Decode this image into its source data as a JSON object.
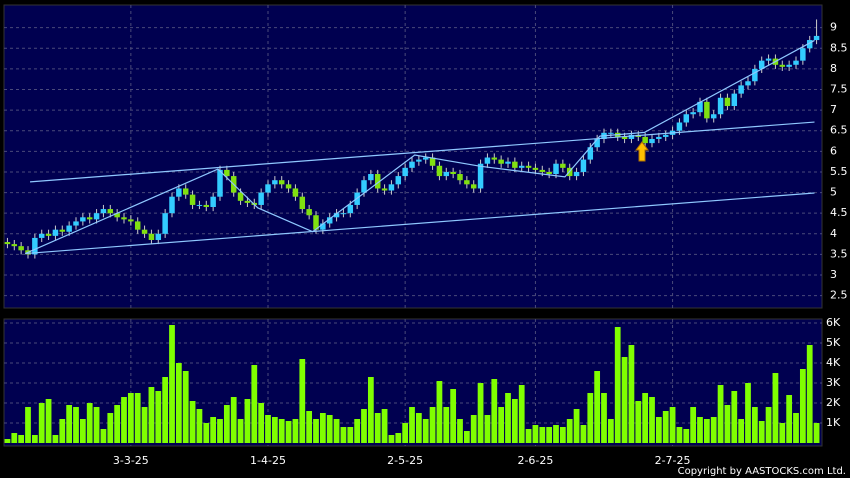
{
  "chart_data": {
    "type": "candlestick",
    "categories": [
      null,
      null,
      null,
      null,
      null,
      null,
      null,
      null,
      null,
      null,
      null,
      null,
      null,
      null,
      null,
      null,
      null,
      null,
      "3-3-25",
      null,
      null,
      null,
      null,
      null,
      null,
      null,
      null,
      null,
      null,
      null,
      null,
      null,
      null,
      null,
      null,
      null,
      null,
      null,
      "1-4-25",
      null,
      null,
      null,
      null,
      null,
      null,
      null,
      null,
      null,
      null,
      null,
      null,
      null,
      null,
      null,
      null,
      null,
      null,
      null,
      "2-5-25",
      null,
      null,
      null,
      null,
      null,
      null,
      null,
      null,
      null,
      null,
      null,
      null,
      null,
      null,
      null,
      null,
      null,
      null,
      "2-6-25",
      null,
      null,
      null,
      null,
      null,
      null,
      null,
      null,
      null,
      null,
      null,
      null,
      null,
      null,
      null,
      null,
      null,
      null,
      null,
      "2-7-25",
      null,
      null,
      null,
      null,
      null,
      null,
      null,
      null,
      null,
      null,
      null,
      null,
      null,
      null,
      null,
      null,
      null,
      null,
      null,
      null,
      null
    ],
    "open": [
      3.8,
      3.75,
      3.7,
      3.6,
      3.5,
      3.9,
      4.0,
      3.95,
      4.1,
      4.05,
      4.2,
      4.3,
      4.4,
      4.35,
      4.5,
      4.6,
      4.5,
      4.4,
      4.35,
      4.3,
      4.1,
      4.0,
      3.85,
      4.0,
      4.5,
      4.9,
      5.1,
      4.95,
      4.7,
      4.7,
      4.65,
      4.9,
      5.55,
      5.4,
      5.0,
      4.8,
      4.75,
      4.7,
      5.0,
      5.2,
      5.3,
      5.2,
      5.1,
      4.9,
      4.6,
      4.45,
      4.1,
      4.25,
      4.4,
      4.5,
      4.5,
      4.7,
      5.0,
      5.3,
      5.45,
      5.1,
      5.05,
      5.2,
      5.4,
      5.6,
      5.75,
      5.8,
      5.85,
      5.65,
      5.4,
      5.5,
      5.45,
      5.3,
      5.2,
      5.1,
      5.7,
      5.85,
      5.8,
      5.7,
      5.75,
      5.6,
      5.65,
      5.6,
      5.55,
      5.5,
      5.45,
      5.7,
      5.6,
      5.4,
      5.5,
      5.8,
      6.1,
      6.3,
      6.45,
      6.45,
      6.35,
      6.3,
      6.4,
      6.35,
      6.2,
      6.3,
      6.35,
      6.4,
      6.5,
      6.7,
      6.9,
      6.95,
      7.2,
      6.8,
      6.9,
      7.3,
      7.1,
      7.4,
      7.6,
      7.7,
      8.0,
      8.2,
      8.25,
      8.1,
      8.05,
      8.1,
      8.2,
      8.5,
      8.7
    ],
    "high": [
      3.9,
      3.85,
      3.8,
      3.7,
      4.0,
      4.1,
      4.1,
      4.2,
      4.2,
      4.3,
      4.4,
      4.5,
      4.5,
      4.6,
      4.7,
      4.7,
      4.6,
      4.5,
      4.45,
      4.4,
      4.2,
      4.1,
      4.1,
      4.6,
      5.0,
      5.2,
      5.2,
      5.05,
      4.8,
      4.8,
      5.0,
      5.65,
      5.65,
      5.5,
      5.1,
      4.9,
      4.85,
      5.1,
      5.3,
      5.4,
      5.4,
      5.3,
      5.2,
      5.0,
      4.7,
      4.55,
      4.35,
      4.5,
      4.6,
      4.6,
      4.8,
      5.1,
      5.4,
      5.55,
      5.55,
      5.2,
      5.3,
      5.5,
      5.7,
      5.85,
      5.9,
      5.95,
      5.95,
      5.75,
      5.6,
      5.6,
      5.55,
      5.4,
      5.3,
      5.8,
      5.95,
      5.95,
      5.9,
      5.85,
      5.85,
      5.75,
      5.75,
      5.7,
      5.65,
      5.6,
      5.8,
      5.8,
      5.7,
      5.6,
      5.9,
      6.2,
      6.4,
      6.55,
      6.55,
      6.55,
      6.45,
      6.5,
      6.5,
      6.45,
      6.4,
      6.45,
      6.5,
      6.6,
      6.8,
      7.0,
      7.05,
      7.3,
      7.3,
      7.0,
      7.4,
      7.4,
      7.5,
      7.7,
      7.8,
      8.1,
      8.3,
      8.35,
      8.35,
      8.2,
      8.2,
      8.3,
      8.6,
      8.8,
      9.2
    ],
    "low": [
      3.65,
      3.6,
      3.5,
      3.4,
      3.4,
      3.8,
      3.85,
      3.85,
      3.95,
      3.95,
      4.1,
      4.2,
      4.25,
      4.25,
      4.4,
      4.4,
      4.3,
      4.25,
      4.2,
      4.0,
      3.9,
      3.75,
      3.75,
      3.9,
      4.4,
      4.8,
      4.85,
      4.6,
      4.6,
      4.55,
      4.55,
      4.8,
      5.3,
      4.9,
      4.7,
      4.65,
      4.6,
      4.6,
      4.9,
      5.1,
      5.1,
      5.0,
      4.8,
      4.5,
      4.35,
      4.0,
      4.0,
      4.15,
      4.3,
      4.4,
      4.4,
      4.6,
      4.9,
      5.2,
      5.0,
      4.95,
      4.95,
      5.1,
      5.3,
      5.5,
      5.65,
      5.7,
      5.55,
      5.3,
      5.3,
      5.35,
      5.2,
      5.1,
      5.0,
      5.0,
      5.6,
      5.7,
      5.6,
      5.6,
      5.5,
      5.5,
      5.5,
      5.45,
      5.4,
      5.35,
      5.35,
      5.5,
      5.3,
      5.3,
      5.4,
      5.7,
      6.0,
      6.2,
      6.35,
      6.25,
      6.2,
      6.2,
      6.25,
      6.1,
      6.1,
      6.2,
      6.25,
      6.3,
      6.4,
      6.6,
      6.8,
      6.85,
      6.7,
      6.7,
      6.8,
      7.0,
      7.0,
      7.3,
      7.5,
      7.6,
      7.9,
      8.1,
      8.0,
      7.95,
      7.95,
      8.0,
      8.1,
      8.4,
      8.6
    ],
    "close": [
      3.75,
      3.7,
      3.6,
      3.5,
      3.9,
      4.0,
      3.95,
      4.1,
      4.05,
      4.2,
      4.3,
      4.4,
      4.35,
      4.5,
      4.6,
      4.5,
      4.4,
      4.35,
      4.3,
      4.1,
      4.0,
      3.85,
      4.0,
      4.5,
      4.9,
      5.1,
      4.95,
      4.7,
      4.7,
      4.65,
      4.9,
      5.55,
      5.4,
      5.0,
      4.8,
      4.75,
      4.7,
      5.0,
      5.2,
      5.3,
      5.2,
      5.1,
      4.9,
      4.6,
      4.45,
      4.1,
      4.25,
      4.4,
      4.5,
      4.5,
      4.7,
      5.0,
      5.3,
      5.45,
      5.1,
      5.05,
      5.2,
      5.4,
      5.6,
      5.75,
      5.8,
      5.85,
      5.65,
      5.4,
      5.5,
      5.45,
      5.3,
      5.2,
      5.1,
      5.7,
      5.85,
      5.8,
      5.7,
      5.75,
      5.6,
      5.65,
      5.6,
      5.55,
      5.5,
      5.45,
      5.7,
      5.6,
      5.4,
      5.5,
      5.8,
      6.1,
      6.3,
      6.45,
      6.45,
      6.35,
      6.3,
      6.4,
      6.35,
      6.2,
      6.3,
      6.35,
      6.4,
      6.5,
      6.7,
      6.9,
      6.95,
      7.2,
      6.8,
      6.9,
      7.3,
      7.1,
      7.4,
      7.6,
      7.7,
      8.0,
      8.2,
      8.25,
      8.1,
      8.05,
      8.1,
      8.2,
      8.5,
      8.7,
      8.8
    ],
    "volume": [
      200,
      500,
      400,
      1800,
      400,
      2000,
      2200,
      400,
      1200,
      1900,
      1800,
      1200,
      2000,
      1800,
      700,
      1500,
      1900,
      2300,
      2500,
      2500,
      1800,
      2800,
      2600,
      3300,
      5900,
      4000,
      3600,
      2100,
      1700,
      1000,
      1300,
      1200,
      1900,
      2300,
      1200,
      2200,
      3900,
      2000,
      1400,
      1300,
      1200,
      1100,
      1200,
      4200,
      1600,
      1200,
      1500,
      1400,
      1200,
      800,
      800,
      1200,
      1700,
      3300,
      1500,
      1700,
      400,
      500,
      1000,
      1800,
      1500,
      1200,
      1800,
      3100,
      1800,
      2700,
      1200,
      600,
      1400,
      3000,
      1400,
      3200,
      1800,
      2500,
      2200,
      2900,
      700,
      900,
      800,
      800,
      900,
      800,
      1200,
      1700,
      900,
      2500,
      3600,
      2500,
      1200,
      5800,
      4300,
      4900,
      2100,
      2500,
      2300,
      1300,
      1600,
      1800,
      800,
      700,
      1800,
      1300,
      1200,
      1300,
      2900,
      1900,
      2600,
      1200,
      3000,
      1800,
      1100,
      1800,
      3500,
      1000,
      2400,
      1500,
      3700,
      4900,
      1000
    ],
    "up_color": "#33ccff",
    "down_color": "#80e010",
    "volume_color": "#80ff00",
    "line_color": "#8fc8ff",
    "ylim": [
      2.2,
      9.55
    ],
    "yticks": [
      2.5,
      3,
      3.5,
      4,
      4.5,
      5,
      5.5,
      6,
      6.5,
      7,
      7.5,
      8,
      8.5,
      9
    ],
    "volume_ylim": [
      -150,
      6200
    ],
    "volume_ticks": [
      {
        "value": 1000,
        "label": "1K"
      },
      {
        "value": 2000,
        "label": "2K"
      },
      {
        "value": 3000,
        "label": "3K"
      },
      {
        "value": 4000,
        "label": "4K"
      },
      {
        "value": 5000,
        "label": "5K"
      },
      {
        "value": 6000,
        "label": "6K"
      }
    ],
    "grid": true,
    "trendlines": [
      {
        "x": [
          3.3,
          117.7
        ],
        "y": [
          5.26,
          6.71
        ]
      },
      {
        "x": [
          2.6,
          117.7
        ],
        "y": [
          3.52,
          4.99
        ]
      },
      {
        "x": [
          2.6,
          30.7,
          36.5,
          44.5,
          59.4,
          68.9,
          81.3,
          86.4,
          92.9,
          117.7
        ],
        "y": [
          3.52,
          5.57,
          4.63,
          4.05,
          5.91,
          5.64,
          5.38,
          6.37,
          6.46,
          8.69
        ]
      }
    ],
    "copyright": "Copyright by AASTOCKS.com Ltd."
  }
}
